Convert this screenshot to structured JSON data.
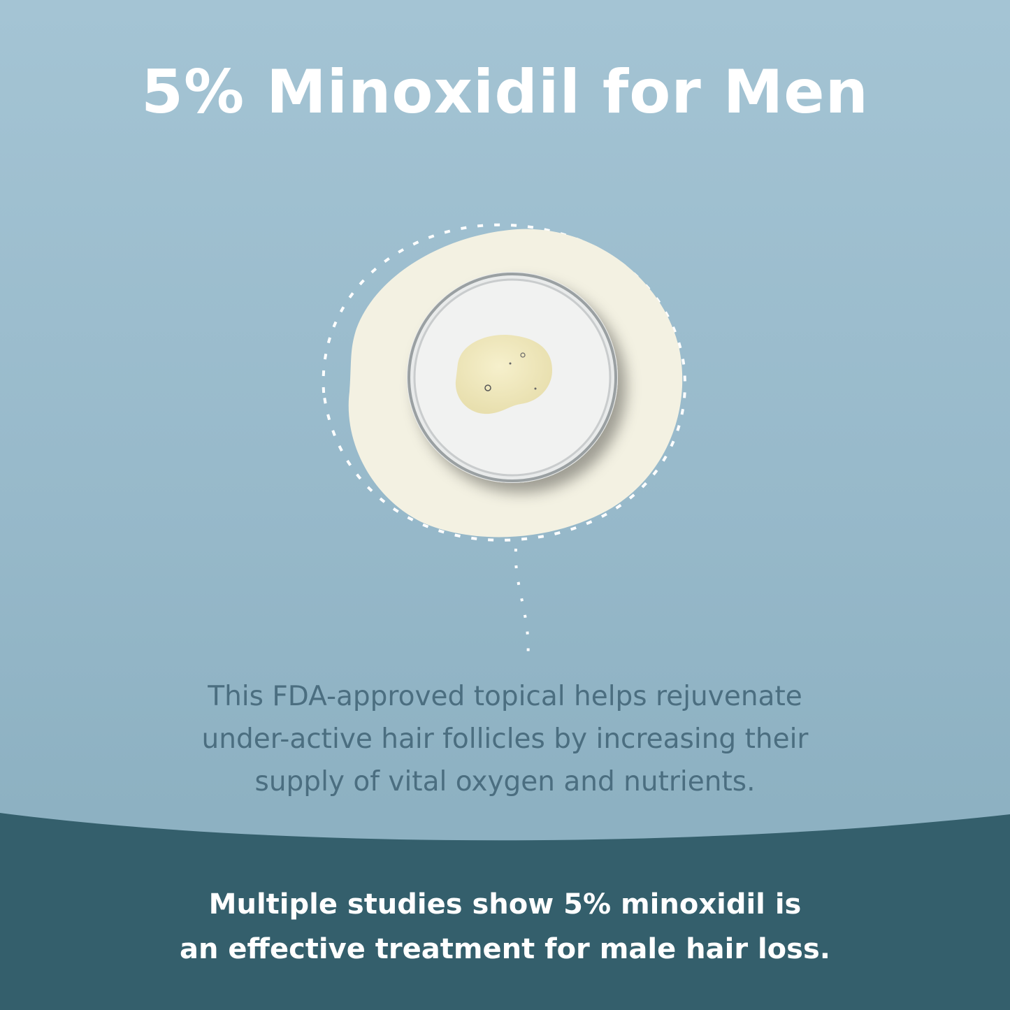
{
  "title": "5% Minoxidil for Men",
  "description_lines": [
    "This FDA-approved topical helps rejuvenate",
    "under-active hair follicles by increasing their",
    "supply of vital oxygen and nutrients."
  ],
  "footer_lines": [
    "Multiple studies show 5% minoxidil is",
    "an effective treatment for male hair loss."
  ],
  "colors": {
    "background_top": "#a4c4d4",
    "background_bottom": "#8db1c2",
    "band": "#345f6c",
    "blob": "#f3f1e2",
    "body_text": "#4b6e80",
    "title_text": "#ffffff"
  }
}
